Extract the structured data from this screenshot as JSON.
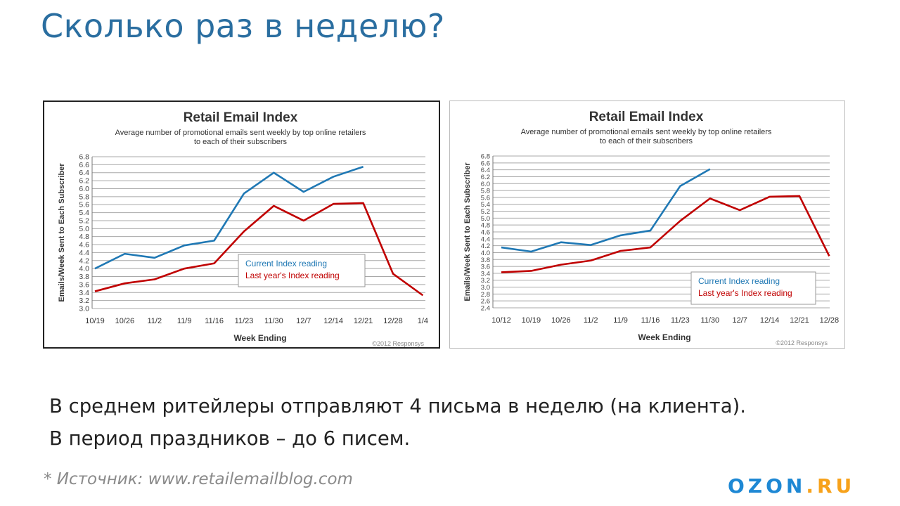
{
  "title": "Сколько раз в неделю?",
  "body": {
    "line1": "В среднем ритейлеры отправляют 4 письма в неделю (на клиента).",
    "line2": "В период праздников – до 6 писем."
  },
  "source": "* Источник: www.retailemailblog.com",
  "logo": {
    "main": "OZON",
    "suffix": ".RU",
    "main_color": "#1e88d4",
    "suffix_color": "#f7a21b"
  },
  "colors": {
    "current": "#1f78b4",
    "last_year": "#c00000",
    "title": "#2a6ea0"
  },
  "chart_data": [
    {
      "type": "line",
      "title": "Retail Email Index",
      "subtitle": [
        "Average number of promotional emails sent weekly by top online retailers",
        "to each of their subscribers"
      ],
      "xlabel": "Week Ending",
      "ylabel": "Emails/Week Sent to Each Subscriber",
      "ylim": [
        3.0,
        6.8
      ],
      "ytick_step": 0.2,
      "categories": [
        "10/19",
        "10/26",
        "11/2",
        "11/9",
        "11/16",
        "11/23",
        "11/30",
        "12/7",
        "12/14",
        "12/21",
        "12/28",
        "1/4"
      ],
      "series": [
        {
          "name": "Current Index reading",
          "color": "#1f78b4",
          "values": [
            4.0,
            4.37,
            4.27,
            4.58,
            4.7,
            5.88,
            6.4,
            5.92,
            6.3,
            6.55,
            null,
            null
          ]
        },
        {
          "name": "Last year's Index reading",
          "color": "#c00000",
          "values": [
            3.43,
            3.63,
            3.73,
            4.0,
            4.13,
            4.93,
            5.57,
            5.2,
            5.62,
            5.64,
            3.87,
            3.33
          ]
        }
      ],
      "legend": "middle-right",
      "grid": true,
      "credit": "©2012 Responsys"
    },
    {
      "type": "line",
      "title": "Retail Email Index",
      "subtitle": [
        "Average number of promotional emails sent weekly by top online retailers",
        "to each of their subscribers"
      ],
      "xlabel": "Week Ending",
      "ylabel": "Emails/Week Sent to Each Subscriber",
      "ylim": [
        2.4,
        6.8
      ],
      "ytick_step": 0.2,
      "categories": [
        "10/12",
        "10/19",
        "10/26",
        "11/2",
        "11/9",
        "11/16",
        "11/23",
        "11/30",
        "12/7",
        "12/14",
        "12/21",
        "12/28"
      ],
      "series": [
        {
          "name": "Current Index reading",
          "color": "#1f78b4",
          "values": [
            4.15,
            4.03,
            4.3,
            4.22,
            4.5,
            4.64,
            5.93,
            6.42,
            null,
            null,
            null,
            null
          ]
        },
        {
          "name": "Last year's Index reading",
          "color": "#c00000",
          "values": [
            3.43,
            3.47,
            3.65,
            3.77,
            4.05,
            4.15,
            4.92,
            5.57,
            5.23,
            5.62,
            5.64,
            3.9
          ]
        }
      ],
      "legend": "bottom-right",
      "grid": true,
      "credit": "©2012 Responsys"
    }
  ]
}
